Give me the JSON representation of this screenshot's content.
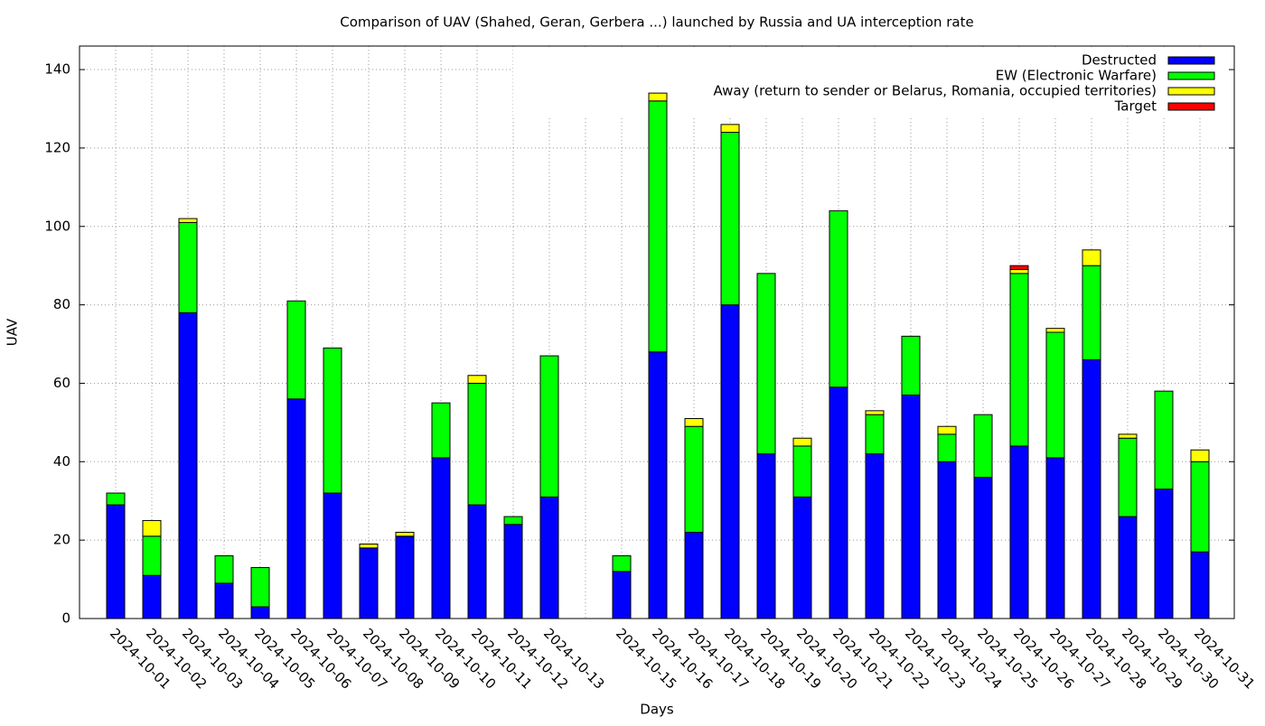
{
  "chart_data": {
    "type": "stacked_bar",
    "title": "Comparison of UAV (Shahed, Geran, Gerbera ...) launched by Russia and UA interception rate",
    "x_label": "Days",
    "y_label": "UAV",
    "categories": [
      "2024-10-01",
      "2024-10-02",
      "2024-10-03",
      "2024-10-04",
      "2024-10-05",
      "2024-10-06",
      "2024-10-07",
      "2024-10-08",
      "2024-10-09",
      "2024-10-10",
      "2024-10-11",
      "2024-10-12",
      "2024-10-13",
      null,
      "2024-10-15",
      "2024-10-16",
      "2024-10-17",
      "2024-10-18",
      "2024-10-19",
      "2024-10-20",
      "2024-10-21",
      "2024-10-22",
      "2024-10-23",
      "2024-10-24",
      "2024-10-25",
      "2024-10-26",
      "2024-10-27",
      "2024-10-28",
      "2024-10-29",
      "2024-10-30",
      "2024-10-31"
    ],
    "series": [
      {
        "name": "Destructed",
        "color": "#0000ff",
        "values": [
          29,
          11,
          78,
          9,
          3,
          56,
          32,
          18,
          21,
          41,
          29,
          24,
          31,
          null,
          12,
          68,
          22,
          80,
          42,
          31,
          59,
          42,
          57,
          40,
          36,
          44,
          41,
          66,
          26,
          33,
          17
        ]
      },
      {
        "name": "EW (Electronic Warfare)",
        "color": "#00ff00",
        "values": [
          3,
          10,
          23,
          7,
          10,
          25,
          37,
          0,
          0,
          14,
          31,
          2,
          36,
          null,
          4,
          64,
          27,
          44,
          46,
          13,
          45,
          10,
          15,
          7,
          16,
          44,
          32,
          24,
          20,
          25,
          23
        ]
      },
      {
        "name": "Away (return to sender or Belarus, Romania, occupied territories)",
        "color": "#ffff00",
        "values": [
          0,
          4,
          1,
          0,
          0,
          0,
          0,
          1,
          1,
          0,
          2,
          0,
          0,
          null,
          0,
          2,
          2,
          2,
          0,
          2,
          0,
          1,
          0,
          2,
          0,
          1,
          1,
          4,
          1,
          0,
          3
        ]
      },
      {
        "name": "Target",
        "color": "#ff0000",
        "values": [
          0,
          0,
          0,
          0,
          0,
          0,
          0,
          0,
          0,
          0,
          0,
          0,
          0,
          null,
          0,
          0,
          0,
          0,
          0,
          0,
          0,
          0,
          0,
          0,
          0,
          1,
          0,
          0,
          0,
          0,
          0
        ]
      }
    ],
    "ylim": [
      0,
      146
    ],
    "yticks": [
      0,
      20,
      40,
      60,
      80,
      100,
      120,
      140
    ],
    "grid": true,
    "legend": "top-right"
  }
}
